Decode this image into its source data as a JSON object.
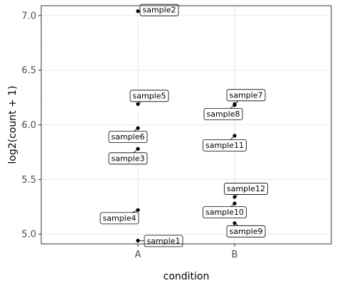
{
  "chart_data": {
    "type": "scatter",
    "xlabel": "condition",
    "ylabel": "log2(count + 1)",
    "categories": [
      "A",
      "B"
    ],
    "ylim": [
      4.91,
      7.09
    ],
    "yticks": [
      5.0,
      5.5,
      6.0,
      6.5,
      7.0
    ],
    "ytick_labels": [
      "5.0",
      "5.5",
      "6.0",
      "6.5",
      "7.0"
    ],
    "grid": true,
    "points": [
      {
        "label": "sample1",
        "x": "A",
        "y": 4.94
      },
      {
        "label": "sample2",
        "x": "A",
        "y": 7.04
      },
      {
        "label": "sample3",
        "x": "A",
        "y": 5.78
      },
      {
        "label": "sample4",
        "x": "A",
        "y": 5.22
      },
      {
        "label": "sample5",
        "x": "A",
        "y": 6.19
      },
      {
        "label": "sample6",
        "x": "A",
        "y": 5.97
      },
      {
        "label": "sample7",
        "x": "B",
        "y": 6.19
      },
      {
        "label": "sample8",
        "x": "B",
        "y": 6.18
      },
      {
        "label": "sample9",
        "x": "B",
        "y": 5.1
      },
      {
        "label": "sample10",
        "x": "B",
        "y": 5.28
      },
      {
        "label": "sample11",
        "x": "B",
        "y": 5.9
      },
      {
        "label": "sample12",
        "x": "B",
        "y": 5.34
      }
    ],
    "colors": {
      "point": "#000000",
      "panel_border": "#333333",
      "grid_major": "#ebebeb",
      "grid_minor": "#f5f5f5",
      "tick_text": "#4d4d4d"
    }
  }
}
